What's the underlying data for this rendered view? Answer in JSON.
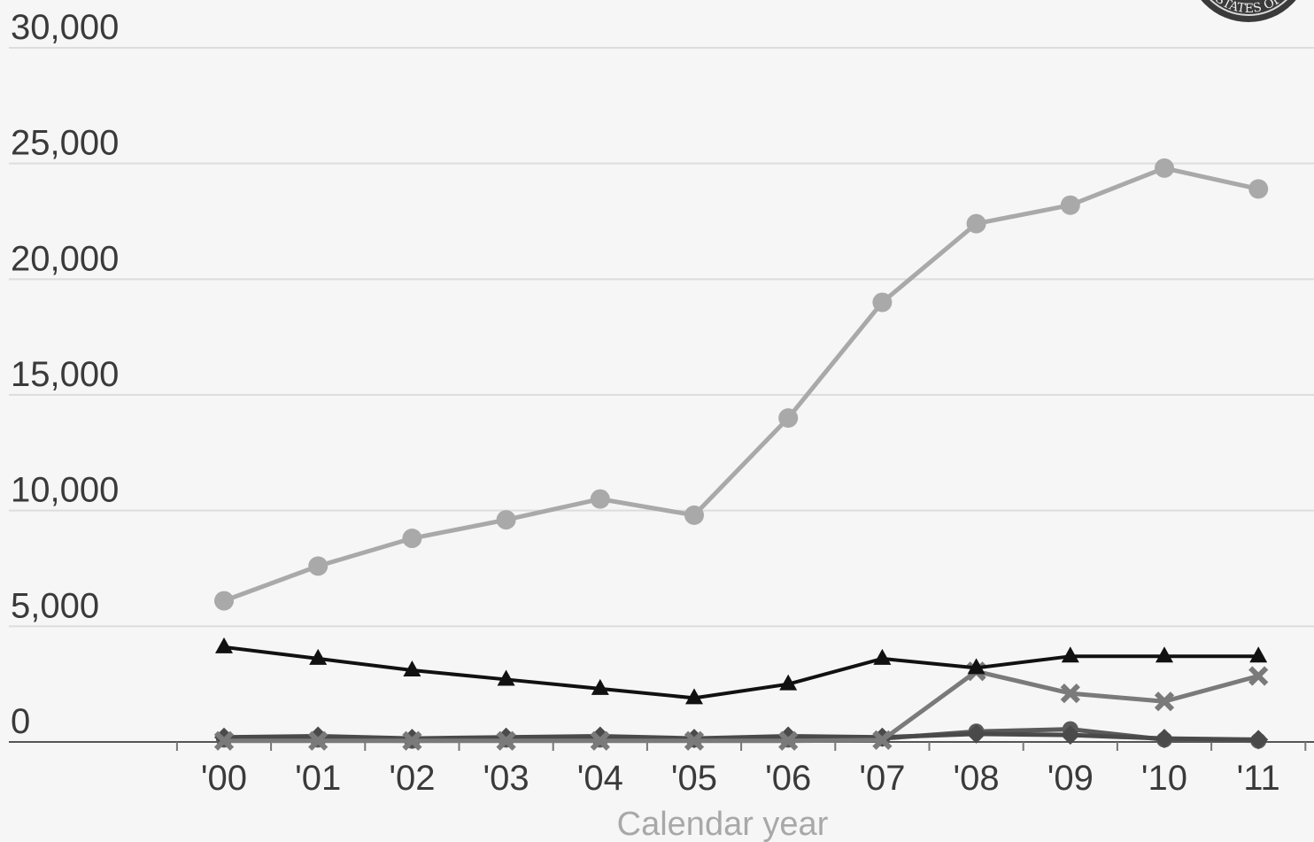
{
  "chart_data": {
    "type": "line",
    "title": "",
    "xlabel": "Calendar year",
    "ylabel": "",
    "x": [
      "'00",
      "'01",
      "'02",
      "'03",
      "'04",
      "'05",
      "'06",
      "'07",
      "'08",
      "'09",
      "'10",
      "'11"
    ],
    "y_ticks": [
      "0",
      "5,000",
      "10,000",
      "15,000",
      "20,000",
      "25,000",
      "30,000"
    ],
    "y_tick_values": [
      0,
      5000,
      10000,
      15000,
      20000,
      25000,
      30000
    ],
    "ylim": [
      0,
      30000
    ],
    "grid": "horizontal",
    "series": [
      {
        "color": "#a9a9a9",
        "marker": "circle",
        "values": [
          6100,
          7600,
          8800,
          9600,
          10500,
          9800,
          14000,
          19000,
          22400,
          23200,
          24800,
          23900
        ]
      },
      {
        "color": "#111111",
        "marker": "triangle",
        "values": [
          4100,
          3600,
          3100,
          2700,
          2300,
          1900,
          2500,
          3600,
          3200,
          3700,
          3700,
          3700
        ]
      },
      {
        "color": "#7a7a7a",
        "marker": "x",
        "values": [
          50,
          50,
          50,
          50,
          50,
          50,
          50,
          80,
          3050,
          2100,
          1750,
          2850
        ]
      },
      {
        "color": "#4a4a4a",
        "marker": "diamond",
        "values": [
          200,
          250,
          150,
          200,
          250,
          150,
          250,
          200,
          350,
          300,
          150,
          100
        ]
      },
      {
        "color": "#5a5a5a",
        "marker": "circle",
        "values": [
          100,
          100,
          50,
          100,
          100,
          100,
          100,
          150,
          450,
          550,
          100,
          50
        ]
      }
    ]
  },
  "seal": {
    "text": "STATES OF"
  }
}
